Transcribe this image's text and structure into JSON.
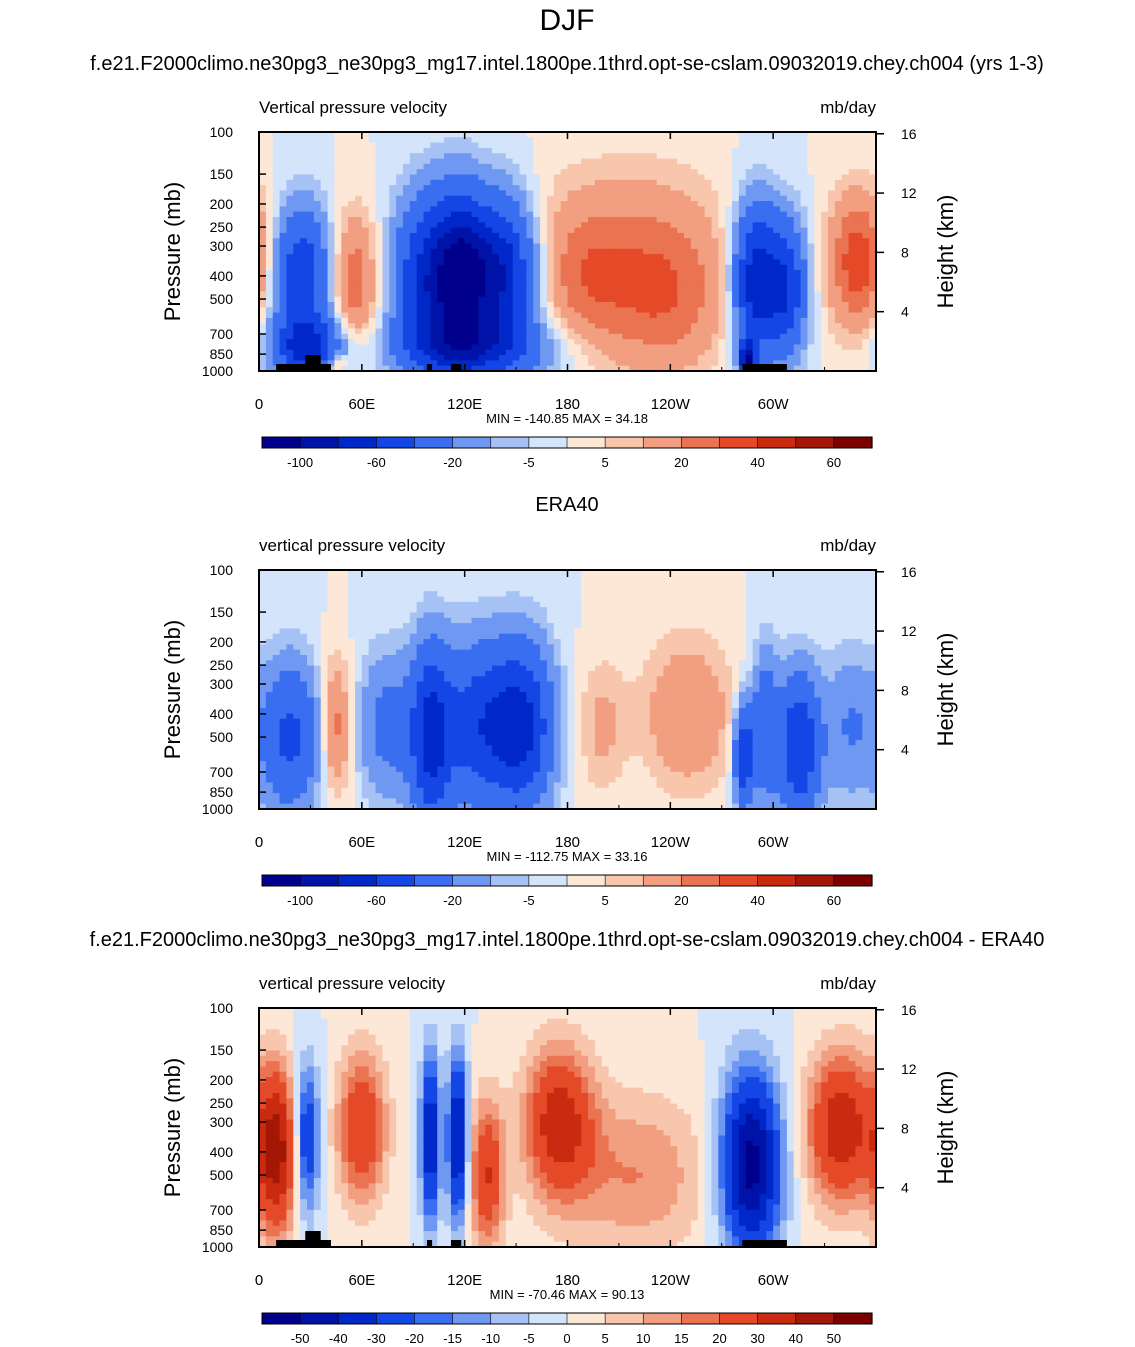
{
  "figure": {
    "title": "DJF"
  },
  "colorscales": {
    "absolute": {
      "colors": [
        "#00008c",
        "#0013a8",
        "#0028c8",
        "#1446e6",
        "#3a6ef0",
        "#6e98f2",
        "#a6c2f5",
        "#d3e4fb",
        "#fde8d8",
        "#f8c5ad",
        "#f19f80",
        "#ea7352",
        "#e44a28",
        "#c92a10",
        "#a41605",
        "#7d0000"
      ],
      "labels": [
        "-100",
        "-60",
        "-20",
        "-5",
        "5",
        "20",
        "40",
        "60"
      ]
    },
    "difference": {
      "colors": [
        "#00008c",
        "#0013a8",
        "#0028c8",
        "#1446e6",
        "#3a6ef0",
        "#6e98f2",
        "#a6c2f5",
        "#d3e4fb",
        "#fde8d8",
        "#f8c5ad",
        "#f19f80",
        "#ea7352",
        "#e44a28",
        "#c92a10",
        "#a41605",
        "#7d0000"
      ],
      "labels": [
        "-50",
        "-40",
        "-30",
        "-20",
        "-15",
        "-10",
        "-5",
        "0",
        "5",
        "10",
        "15",
        "20",
        "30",
        "40",
        "50"
      ]
    }
  },
  "chart_data": [
    {
      "type": "heatmap",
      "title": "f.e21.F2000climo.ne30pg3_ne30pg3_mg17.intel.1800pe.1thrd.opt-se-cslam.09032019.chey.ch004 (yrs 1-3)",
      "left_label": "Vertical pressure velocity",
      "right_label": "mb/day",
      "ylabel": "Pressure (mb)",
      "y2label": "Height (km)",
      "x_ticks": [
        "0",
        "60E",
        "120E",
        "180",
        "120W",
        "60W"
      ],
      "y_ticks": [
        "100",
        "150",
        "200",
        "250",
        "300",
        "400",
        "500",
        "700",
        "850",
        "1000"
      ],
      "y2_ticks": [
        "16",
        "12",
        "8",
        "4"
      ],
      "minmax": "MIN = -140.85  MAX =  34.18",
      "min": -140.85,
      "max": 34.18,
      "xlim": [
        0,
        360
      ],
      "ylim": [
        1000,
        100
      ],
      "scale": "absolute",
      "features": [
        {
          "lon": 25,
          "p": 400,
          "amp": -55,
          "sx": 12,
          "sy": 0.45
        },
        {
          "lon": 28,
          "p": 800,
          "amp": -60,
          "sx": 14,
          "sy": 0.2
        },
        {
          "lon": 55,
          "p": 420,
          "amp": 28,
          "sx": 10,
          "sy": 0.45
        },
        {
          "lon": 45,
          "p": 930,
          "amp": 25,
          "sx": 4,
          "sy": 0.06
        },
        {
          "lon": 100,
          "p": 420,
          "amp": -70,
          "sx": 14,
          "sy": 0.55
        },
        {
          "lon": 118,
          "p": 420,
          "amp": -75,
          "sx": 10,
          "sy": 0.55
        },
        {
          "lon": 140,
          "p": 400,
          "amp": -80,
          "sx": 14,
          "sy": 0.5
        },
        {
          "lon": 125,
          "p": 800,
          "amp": -45,
          "sx": 30,
          "sy": 0.2
        },
        {
          "lon": 190,
          "p": 420,
          "amp": 20,
          "sx": 18,
          "sy": 0.45
        },
        {
          "lon": 235,
          "p": 500,
          "amp": 28,
          "sx": 25,
          "sy": 0.5
        },
        {
          "lon": 215,
          "p": 250,
          "amp": 12,
          "sx": 40,
          "sy": 0.5
        },
        {
          "lon": 290,
          "p": 420,
          "amp": -75,
          "sx": 9,
          "sy": 0.5
        },
        {
          "lon": 308,
          "p": 450,
          "amp": -55,
          "sx": 8,
          "sy": 0.45
        },
        {
          "lon": 285,
          "p": 900,
          "amp": -90,
          "sx": 3,
          "sy": 0.12
        },
        {
          "lon": 350,
          "p": 350,
          "amp": 38,
          "sx": 12,
          "sy": 0.45
        }
      ]
    },
    {
      "type": "heatmap",
      "title": "ERA40",
      "left_label": "vertical pressure velocity",
      "right_label": "mb/day",
      "ylabel": "Pressure (mb)",
      "y2label": "Height (km)",
      "x_ticks": [
        "0",
        "60E",
        "120E",
        "180",
        "120W",
        "60W"
      ],
      "y_ticks": [
        "100",
        "150",
        "200",
        "250",
        "300",
        "400",
        "500",
        "700",
        "850",
        "1000"
      ],
      "y2_ticks": [
        "16",
        "12",
        "8",
        "4"
      ],
      "minmax": "MIN = -112.75  MAX =  33.16",
      "min": -112.75,
      "max": 33.16,
      "xlim": [
        0,
        360
      ],
      "ylim": [
        1000,
        100
      ],
      "scale": "absolute",
      "features": [
        {
          "lon": 18,
          "p": 500,
          "amp": -45,
          "sx": 12,
          "sy": 0.5
        },
        {
          "lon": 45,
          "p": 450,
          "amp": 25,
          "sx": 6,
          "sy": 0.45
        },
        {
          "lon": 75,
          "p": 450,
          "amp": -25,
          "sx": 12,
          "sy": 0.5
        },
        {
          "lon": 100,
          "p": 500,
          "amp": -60,
          "sx": 8,
          "sy": 0.6
        },
        {
          "lon": 130,
          "p": 450,
          "amp": -55,
          "sx": 18,
          "sy": 0.55
        },
        {
          "lon": 155,
          "p": 450,
          "amp": -50,
          "sx": 12,
          "sy": 0.55
        },
        {
          "lon": 200,
          "p": 450,
          "amp": 12,
          "sx": 10,
          "sy": 0.45
        },
        {
          "lon": 250,
          "p": 400,
          "amp": 20,
          "sx": 18,
          "sy": 0.5
        },
        {
          "lon": 283,
          "p": 600,
          "amp": -60,
          "sx": 4,
          "sy": 0.35
        },
        {
          "lon": 295,
          "p": 450,
          "amp": -35,
          "sx": 5,
          "sy": 0.5
        },
        {
          "lon": 315,
          "p": 550,
          "amp": -60,
          "sx": 9,
          "sy": 0.5
        },
        {
          "lon": 345,
          "p": 450,
          "amp": -20,
          "sx": 10,
          "sy": 0.5
        }
      ]
    },
    {
      "type": "heatmap",
      "title": "f.e21.F2000climo.ne30pg3_ne30pg3_mg17.intel.1800pe.1thrd.opt-se-cslam.09032019.chey.ch004 - ERA40",
      "left_label": "vertical pressure velocity",
      "right_label": "mb/day",
      "ylabel": "Pressure (mb)",
      "y2label": "Height (km)",
      "x_ticks": [
        "0",
        "60E",
        "120E",
        "180",
        "120W",
        "60W"
      ],
      "y_ticks": [
        "100",
        "150",
        "200",
        "250",
        "300",
        "400",
        "500",
        "700",
        "850",
        "1000"
      ],
      "y2_ticks": [
        "16",
        "12",
        "8",
        "4"
      ],
      "minmax": "MIN = -70.46  MAX =  90.13",
      "min": -70.46,
      "max": 90.13,
      "xlim": [
        0,
        360
      ],
      "ylim": [
        1000,
        100
      ],
      "scale": "difference",
      "features": [
        {
          "lon": 10,
          "p": 400,
          "amp": 45,
          "sx": 8,
          "sy": 0.55
        },
        {
          "lon": 28,
          "p": 350,
          "amp": -30,
          "sx": 5,
          "sy": 0.5
        },
        {
          "lon": 60,
          "p": 320,
          "amp": 30,
          "sx": 10,
          "sy": 0.5
        },
        {
          "lon": 100,
          "p": 350,
          "amp": -40,
          "sx": 4,
          "sy": 0.55
        },
        {
          "lon": 116,
          "p": 350,
          "amp": -45,
          "sx": 4,
          "sy": 0.55
        },
        {
          "lon": 133,
          "p": 500,
          "amp": 30,
          "sx": 7,
          "sy": 0.5
        },
        {
          "lon": 175,
          "p": 300,
          "amp": 35,
          "sx": 14,
          "sy": 0.5
        },
        {
          "lon": 220,
          "p": 500,
          "amp": 15,
          "sx": 30,
          "sy": 0.55
        },
        {
          "lon": 287,
          "p": 450,
          "amp": -55,
          "sx": 12,
          "sy": 0.6
        },
        {
          "lon": 340,
          "p": 320,
          "amp": 38,
          "sx": 14,
          "sy": 0.5
        }
      ]
    }
  ]
}
